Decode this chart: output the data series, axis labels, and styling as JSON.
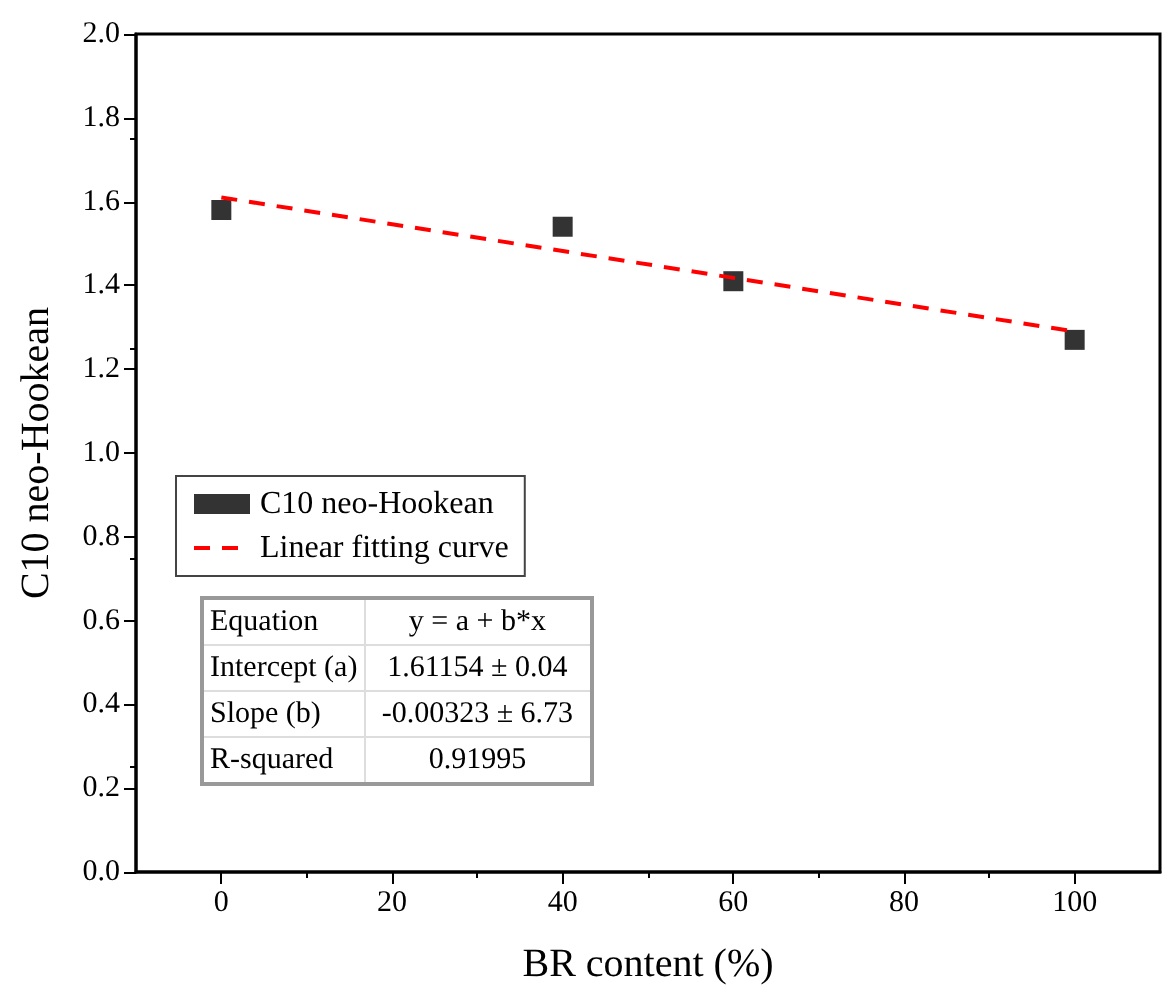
{
  "chart_data": {
    "type": "scatter",
    "xlabel": "BR content (%)",
    "ylabel": "C10 neo-Hookean",
    "xlim": [
      -10,
      110
    ],
    "xticks": [
      0,
      20,
      40,
      60,
      80,
      100
    ],
    "ylim": [
      0,
      2
    ],
    "yticks": [
      {
        "value": 0,
        "label": "0.0"
      },
      {
        "value": 0.2,
        "label": "0.2"
      },
      {
        "value": 0.4,
        "label": "0.4"
      },
      {
        "value": 0.6,
        "label": "0.6"
      },
      {
        "value": 0.8,
        "label": "0.8"
      },
      {
        "value": 1,
        "label": "1.0"
      },
      {
        "value": 1.2,
        "label": "1.2"
      },
      {
        "value": 1.4,
        "label": "1.4"
      },
      {
        "value": 1.6,
        "label": "1.6"
      },
      {
        "value": 1.8,
        "label": "1.8"
      },
      {
        "value": 2,
        "label": "2.0"
      }
    ],
    "legend": "left",
    "series": [
      {
        "name": "C10 neo-Hookean",
        "marker": "square",
        "color": "#000000",
        "x": [
          0,
          40,
          60,
          100
        ],
        "values": [
          1.58,
          1.54,
          1.41,
          1.27
        ]
      },
      {
        "name": "Linear fitting curve",
        "type": "line",
        "line_style": "dashed",
        "marker": "none",
        "color": "#ff0000",
        "x": [
          0,
          100
        ],
        "values": [
          1.61,
          1.29
        ]
      }
    ],
    "annotations": [
      "Equation",
      "y = a + b*x",
      "Intercept (a)",
      "1.61154 ± 0.04",
      "Slope (b)",
      "-0.00323 ± 6.73",
      "R-squared",
      "0.91995"
    ]
  }
}
